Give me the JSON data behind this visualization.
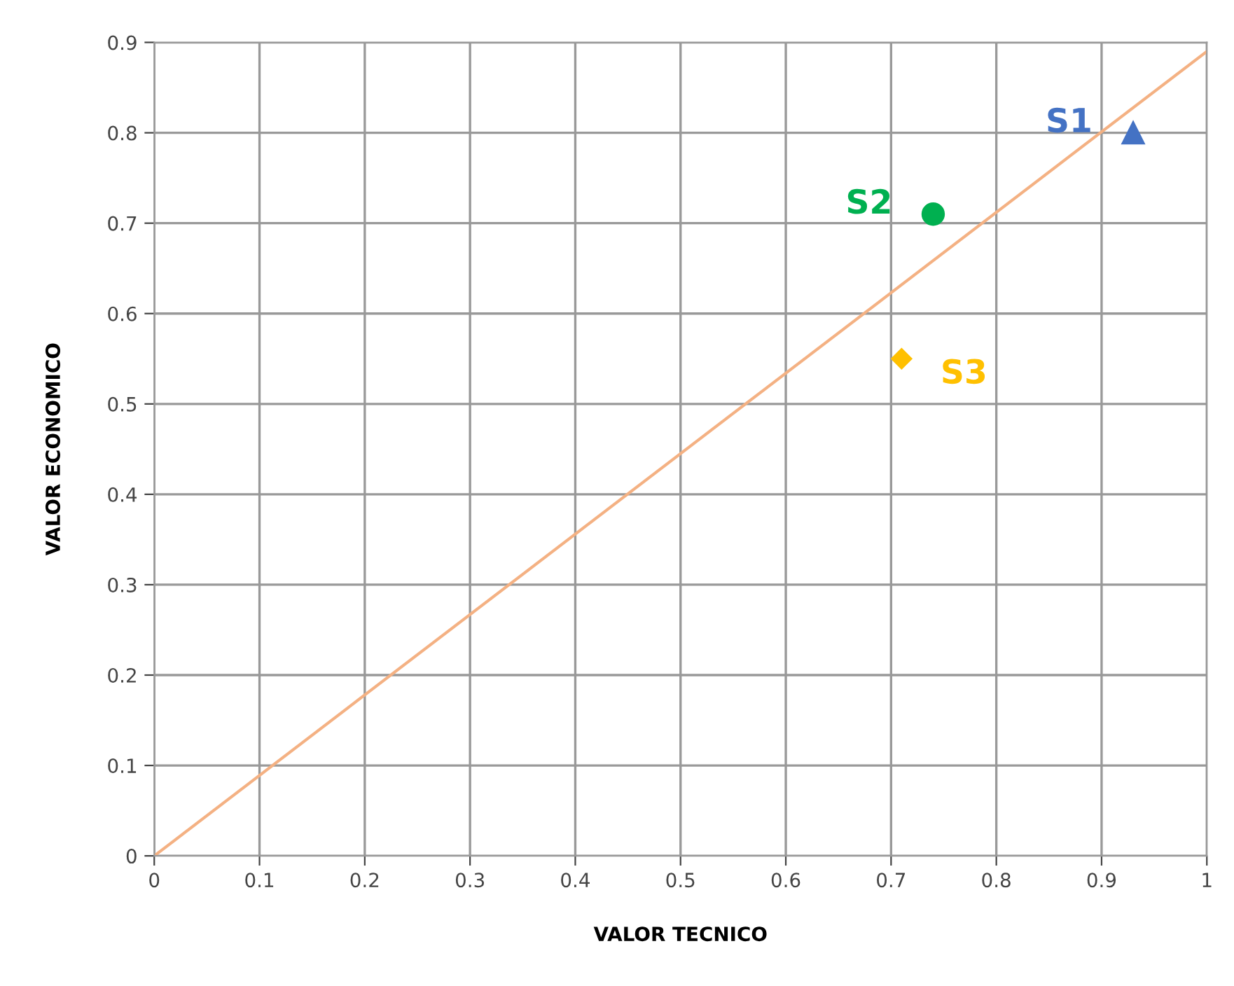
{
  "chart_data": {
    "type": "scatter",
    "xlabel": "VALOR TECNICO",
    "ylabel": "VALOR ECONOMICO",
    "xlim": [
      0,
      1
    ],
    "ylim": [
      0,
      0.9
    ],
    "xticks": [
      0,
      0.1,
      0.2,
      0.3,
      0.4,
      0.5,
      0.6,
      0.7,
      0.8,
      0.9,
      1
    ],
    "yticks": [
      0,
      0.1,
      0.2,
      0.3,
      0.4,
      0.5,
      0.6,
      0.7,
      0.8,
      0.9
    ],
    "grid": true,
    "legend": false,
    "series": [
      {
        "type": "line",
        "color": "#f4b183",
        "x": [
          0,
          1
        ],
        "values": [
          0,
          0.89
        ],
        "marker": "none"
      },
      {
        "name": "S1",
        "color": "#4472c4",
        "x": [
          0.93
        ],
        "values": [
          0.8
        ],
        "marker": "triangle"
      },
      {
        "name": "S2",
        "color": "#00b050",
        "x": [
          0.74
        ],
        "values": [
          0.71
        ],
        "marker": "circle"
      },
      {
        "name": "S3",
        "color": "#ffc000",
        "x": [
          0.71
        ],
        "values": [
          0.55
        ],
        "marker": "diamond"
      }
    ]
  }
}
